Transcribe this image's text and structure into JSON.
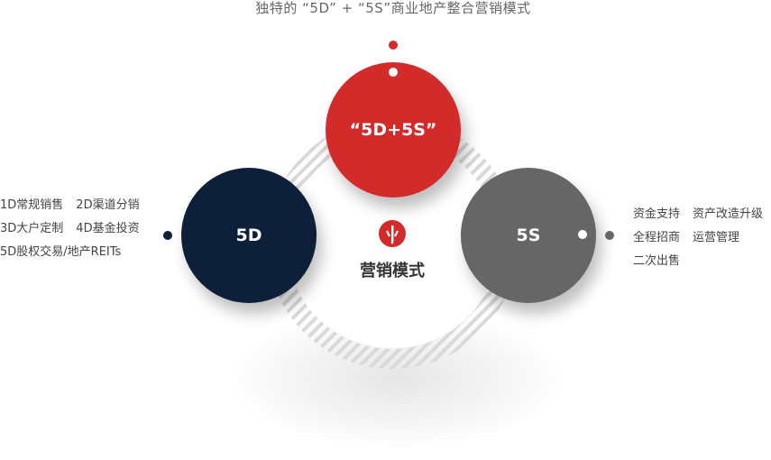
{
  "title": "独特的 “5D” + “5S”商业地产整合营销模式",
  "colors": {
    "combo": "#d32a2a",
    "d5": "#0e2039",
    "s5": "#666666",
    "ring_stripe": "#d6d6d6"
  },
  "circles": {
    "combo_label": "“5D+5S”",
    "d5_label": "5D",
    "s5_label": "5S"
  },
  "center": {
    "label": "营销模式",
    "icon": "marketing-logo-icon"
  },
  "left_items": [
    [
      "1D常规销售",
      "2D渠道分销"
    ],
    [
      "3D大户定制",
      "4D基金投资"
    ],
    [
      "5D股权交易/地产REITs"
    ]
  ],
  "right_items": [
    [
      "资金支持",
      "资产改造升级"
    ],
    [
      "全程招商",
      "运营管理"
    ],
    [
      "二次出售"
    ]
  ]
}
